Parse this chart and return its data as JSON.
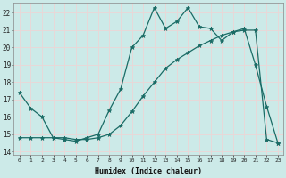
{
  "xlabel": "Humidex (Indice chaleur)",
  "ylabel": "",
  "bg_color": "#cceae8",
  "grid_color": "#e8d8d8",
  "line_color": "#1a6b65",
  "xlim": [
    -0.5,
    23.5
  ],
  "ylim": [
    13.8,
    22.6
  ],
  "yticks": [
    14,
    15,
    16,
    17,
    18,
    19,
    20,
    21,
    22
  ],
  "xticks": [
    0,
    1,
    2,
    3,
    4,
    5,
    6,
    7,
    8,
    9,
    10,
    11,
    12,
    13,
    14,
    15,
    16,
    17,
    18,
    19,
    20,
    21,
    22,
    23
  ],
  "series1_x": [
    0,
    1,
    2,
    3,
    4,
    5,
    6,
    7,
    8,
    9,
    10,
    11,
    12,
    13,
    14,
    15,
    16,
    17,
    18,
    19,
    20,
    21,
    22,
    23
  ],
  "series1_y": [
    17.4,
    16.5,
    16.0,
    14.8,
    14.7,
    14.6,
    14.8,
    15.0,
    16.4,
    17.6,
    20.0,
    20.7,
    22.3,
    21.1,
    21.5,
    22.3,
    21.2,
    21.1,
    20.4,
    20.9,
    21.1,
    19.0,
    16.6,
    14.5
  ],
  "series2_x": [
    0,
    1,
    2,
    3,
    4,
    5,
    6,
    7,
    8,
    9,
    10,
    11,
    12,
    13,
    14,
    15,
    16,
    17,
    18,
    19,
    20,
    21,
    22,
    23
  ],
  "series2_y": [
    14.8,
    14.8,
    14.8,
    14.8,
    14.8,
    14.7,
    14.7,
    14.8,
    15.0,
    15.5,
    16.3,
    17.2,
    18.0,
    18.8,
    19.3,
    19.7,
    20.1,
    20.4,
    20.7,
    20.9,
    21.0,
    21.0,
    14.7,
    14.5
  ]
}
